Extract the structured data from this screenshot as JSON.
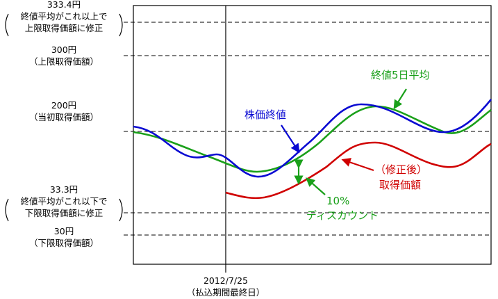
{
  "chart_data": {
    "type": "line",
    "left_labels": {
      "l1": [
        "333.4円",
        "終値平均がこれ以上で",
        "上限取得価額に修正"
      ],
      "l2": [
        "300円",
        "（上限取得価額）"
      ],
      "l3": [
        "200円",
        "（当初取得価額）"
      ],
      "l4": [
        "33.3円",
        "終値平均がこれ以下で",
        "下限取得価額に修正"
      ],
      "l5": [
        "30円",
        "（下限取得価額）"
      ]
    },
    "bottom_label": [
      "2012/7/25",
      "（払込期間最終日）"
    ],
    "series": [
      {
        "name": "株価終値",
        "color": "#0a0ad2"
      },
      {
        "name": "終値5日平均",
        "color": "#1aa01a"
      },
      {
        "name_lines": [
          "（修正後）",
          "取得価額"
        ],
        "color": "#d00000"
      }
    ],
    "annotation": [
      "10%",
      "ディスカウント"
    ],
    "annotation_color": "#1aa01a"
  }
}
